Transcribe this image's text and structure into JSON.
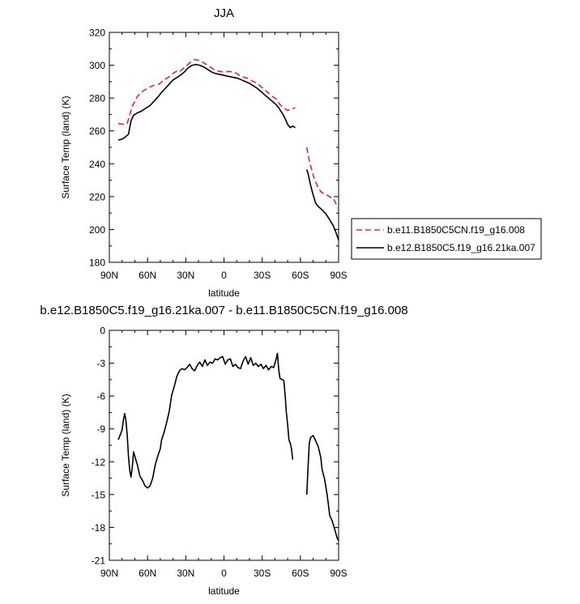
{
  "chart_data": [
    {
      "type": "line",
      "title": "JJA",
      "xlabel": "latitude",
      "ylabel": "Surface Temp (land) (K)",
      "xlim": [
        90,
        -90
      ],
      "ylim": [
        180,
        320
      ],
      "xticks": [
        90,
        60,
        30,
        0,
        -30,
        -60,
        -90
      ],
      "xtick_labels": [
        "90N",
        "60N",
        "30N",
        "0",
        "30S",
        "60S",
        "90S"
      ],
      "yticks": [
        180,
        200,
        220,
        240,
        260,
        280,
        300,
        320
      ],
      "yticks_minor": [
        190,
        210,
        230,
        250,
        270,
        290,
        310
      ],
      "grid": false,
      "legend_position": "outside-right",
      "series": [
        {
          "name": "b.e11.B1850C5CN.f19_g16.008",
          "color": "#e8262a",
          "style": "dashed",
          "segments": [
            [
              [
                83,
                264.5
              ],
              [
                79,
                264
              ],
              [
                76,
                264.5
              ],
              [
                72,
                275
              ],
              [
                68,
                281
              ],
              [
                64,
                284
              ],
              [
                60,
                286
              ],
              [
                56,
                287.5
              ],
              [
                51,
                288.5
              ],
              [
                47,
                291
              ],
              [
                43,
                293
              ],
              [
                40,
                295
              ],
              [
                37,
                296.5
              ],
              [
                35,
                296
              ],
              [
                32,
                298
              ],
              [
                29,
                300
              ],
              [
                26,
                302
              ],
              [
                23,
                303.5
              ],
              [
                20,
                303
              ],
              [
                17,
                302
              ],
              [
                14,
                300.5
              ],
              [
                11,
                299
              ],
              [
                8,
                297.5
              ],
              [
                5,
                296.5
              ],
              [
                2,
                296
              ],
              [
                -1,
                296
              ],
              [
                -4,
                296.2
              ],
              [
                -7,
                296
              ],
              [
                -10,
                295
              ],
              [
                -13,
                293.5
              ],
              [
                -16,
                292.5
              ],
              [
                -19,
                292
              ],
              [
                -22,
                290.5
              ],
              [
                -26,
                289
              ],
              [
                -29,
                287
              ],
              [
                -32,
                285
              ],
              [
                -35,
                283
              ],
              [
                -38,
                281
              ],
              [
                -41,
                279.5
              ],
              [
                -44,
                276
              ],
              [
                -47,
                274
              ],
              [
                -50,
                272.5
              ],
              [
                -53,
                273.5
              ],
              [
                -56,
                274
              ]
            ],
            [
              [
                -65,
                250
              ],
              [
                -67,
                242
              ],
              [
                -70,
                233
              ],
              [
                -73,
                227
              ],
              [
                -76,
                223
              ],
              [
                -79,
                221.5
              ],
              [
                -82,
                220.5
              ],
              [
                -84,
                219.5
              ],
              [
                -86,
                219
              ],
              [
                -88,
                215.5
              ],
              [
                -90,
                212.5
              ]
            ]
          ]
        },
        {
          "name": "b.e12.B1850C5.f19_g16.21ka.007",
          "color": "#000000",
          "style": "solid",
          "segments": [
            [
              [
                83,
                254.5
              ],
              [
                80,
                255
              ],
              [
                78,
                256
              ],
              [
                75,
                258
              ],
              [
                73,
                266
              ],
              [
                71,
                269.5
              ],
              [
                68,
                271
              ],
              [
                65,
                272
              ],
              [
                62,
                273.5
              ],
              [
                58,
                275.5
              ],
              [
                55,
                278
              ],
              [
                52,
                280.5
              ],
              [
                49,
                283.5
              ],
              [
                46,
                286
              ],
              [
                43,
                288.5
              ],
              [
                40,
                291
              ],
              [
                37,
                292.5
              ],
              [
                34,
                294
              ],
              [
                31,
                296
              ],
              [
                28,
                298.5
              ],
              [
                25,
                300
              ],
              [
                22,
                300.5
              ],
              [
                19,
                300
              ],
              [
                16,
                299
              ],
              [
                13,
                297.5
              ],
              [
                10,
                296
              ],
              [
                7,
                295
              ],
              [
                4,
                294.5
              ],
              [
                1,
                294
              ],
              [
                -2,
                293.5
              ],
              [
                -5,
                293
              ],
              [
                -8,
                292.5
              ],
              [
                -11,
                292
              ],
              [
                -14,
                291
              ],
              [
                -17,
                290
              ],
              [
                -20,
                289
              ],
              [
                -23,
                287.5
              ],
              [
                -26,
                286
              ],
              [
                -29,
                284
              ],
              [
                -32,
                282
              ],
              [
                -35,
                280
              ],
              [
                -38,
                278
              ],
              [
                -41,
                276
              ],
              [
                -43,
                274
              ],
              [
                -46,
                270.5
              ],
              [
                -48,
                267.5
              ],
              [
                -50,
                264
              ],
              [
                -52,
                262
              ],
              [
                -54,
                263
              ],
              [
                -56,
                262
              ]
            ],
            [
              [
                -65,
                236.5
              ],
              [
                -66,
                234
              ],
              [
                -68,
                227
              ],
              [
                -70,
                221
              ],
              [
                -72,
                216
              ],
              [
                -74,
                214
              ],
              [
                -77,
                212
              ],
              [
                -80,
                209.5
              ],
              [
                -83,
                206
              ],
              [
                -86,
                202
              ],
              [
                -88,
                198
              ],
              [
                -90,
                193.5
              ]
            ]
          ]
        }
      ]
    },
    {
      "type": "line",
      "title": "b.e12.B1850C5.f19_g16.21ka.007 - b.e11.B1850C5CN.f19_g16.008",
      "xlabel": "latitude",
      "ylabel": "Surface Temp (land) (K)",
      "xlim": [
        90,
        -90
      ],
      "ylim": [
        -21,
        0
      ],
      "xticks": [
        90,
        60,
        30,
        0,
        -30,
        -60,
        -90
      ],
      "xtick_labels": [
        "90N",
        "60N",
        "30N",
        "0",
        "30S",
        "60S",
        "90S"
      ],
      "yticks": [
        -21,
        -18,
        -15,
        -12,
        -9,
        -6,
        -3,
        0
      ],
      "yticks_minor": [
        -19.5,
        -16.5,
        -13.5,
        -10.5,
        -7.5,
        -4.5,
        -1.5
      ],
      "grid": false,
      "series": [
        {
          "color": "#000000",
          "style": "solid",
          "segments": [
            [
              [
                83,
                -10
              ],
              [
                81,
                -9.4
              ],
              [
                80,
                -9.1
              ],
              [
                79,
                -8.2
              ],
              [
                78,
                -7.6
              ],
              [
                77,
                -8.2
              ],
              [
                76,
                -9.5
              ],
              [
                75,
                -11.5
              ],
              [
                74,
                -12.8
              ],
              [
                73,
                -13.4
              ],
              [
                72,
                -12.5
              ],
              [
                71,
                -11.1
              ],
              [
                70,
                -11.5
              ],
              [
                68,
                -12.3
              ],
              [
                66,
                -13.3
              ],
              [
                64,
                -13.7
              ],
              [
                62,
                -14.2
              ],
              [
                60,
                -14.4
              ],
              [
                58,
                -14.2
              ],
              [
                56,
                -13.5
              ],
              [
                54,
                -12.3
              ],
              [
                52,
                -11.5
              ],
              [
                50,
                -10.8
              ],
              [
                49,
                -10
              ],
              [
                47,
                -9.3
              ],
              [
                45,
                -8.4
              ],
              [
                43,
                -7.4
              ],
              [
                41,
                -5.9
              ],
              [
                39,
                -5.1
              ],
              [
                37,
                -4.2
              ],
              [
                35,
                -3.7
              ],
              [
                33,
                -3.5
              ],
              [
                31,
                -3.6
              ],
              [
                29,
                -3.4
              ],
              [
                27,
                -3.1
              ],
              [
                25,
                -3.5
              ],
              [
                23,
                -3.7
              ],
              [
                21,
                -3.2
              ],
              [
                19,
                -2.9
              ],
              [
                17,
                -3.3
              ],
              [
                15,
                -2.7
              ],
              [
                13,
                -3.2
              ],
              [
                11,
                -2.9
              ],
              [
                9,
                -3
              ],
              [
                7,
                -2.6
              ],
              [
                5,
                -2.7
              ],
              [
                3,
                -2.5
              ],
              [
                1,
                -2.4
              ],
              [
                -1,
                -3.1
              ],
              [
                -3,
                -2.7
              ],
              [
                -5,
                -2.6
              ],
              [
                -7,
                -3.3
              ],
              [
                -9,
                -3.1
              ],
              [
                -11,
                -3.4
              ],
              [
                -13,
                -3.5
              ],
              [
                -15,
                -2.8
              ],
              [
                -17,
                -2.4
              ],
              [
                -19,
                -3.1
              ],
              [
                -21,
                -2.5
              ],
              [
                -23,
                -3.2
              ],
              [
                -25,
                -3
              ],
              [
                -27,
                -3.3
              ],
              [
                -29,
                -3.1
              ],
              [
                -31,
                -3.5
              ],
              [
                -33,
                -3.2
              ],
              [
                -35,
                -3.6
              ],
              [
                -37,
                -3.3
              ],
              [
                -39,
                -3.4
              ],
              [
                -40,
                -3
              ],
              [
                -41,
                -2.6
              ],
              [
                -42,
                -2.1
              ],
              [
                -43,
                -3.6
              ],
              [
                -44,
                -4.4
              ],
              [
                -46,
                -4.5
              ],
              [
                -47,
                -4.6
              ],
              [
                -48,
                -5.9
              ],
              [
                -49,
                -7.5
              ],
              [
                -50,
                -8.6
              ],
              [
                -51,
                -10
              ],
              [
                -52,
                -10.3
              ],
              [
                -53,
                -10.8
              ],
              [
                -54,
                -11.8
              ]
            ],
            [
              [
                -65,
                -15
              ],
              [
                -66,
                -12.5
              ],
              [
                -67,
                -10.3
              ],
              [
                -68,
                -9.8
              ],
              [
                -70,
                -9.6
              ],
              [
                -72,
                -10.1
              ],
              [
                -74,
                -10.6
              ],
              [
                -76,
                -11.6
              ],
              [
                -77,
                -12.7
              ],
              [
                -79,
                -13.6
              ],
              [
                -81,
                -15
              ],
              [
                -82,
                -15.9
              ],
              [
                -83,
                -16.9
              ],
              [
                -85,
                -17.4
              ],
              [
                -87,
                -18.2
              ],
              [
                -89,
                -19
              ],
              [
                -90,
                -19.2
              ]
            ]
          ]
        }
      ]
    }
  ]
}
